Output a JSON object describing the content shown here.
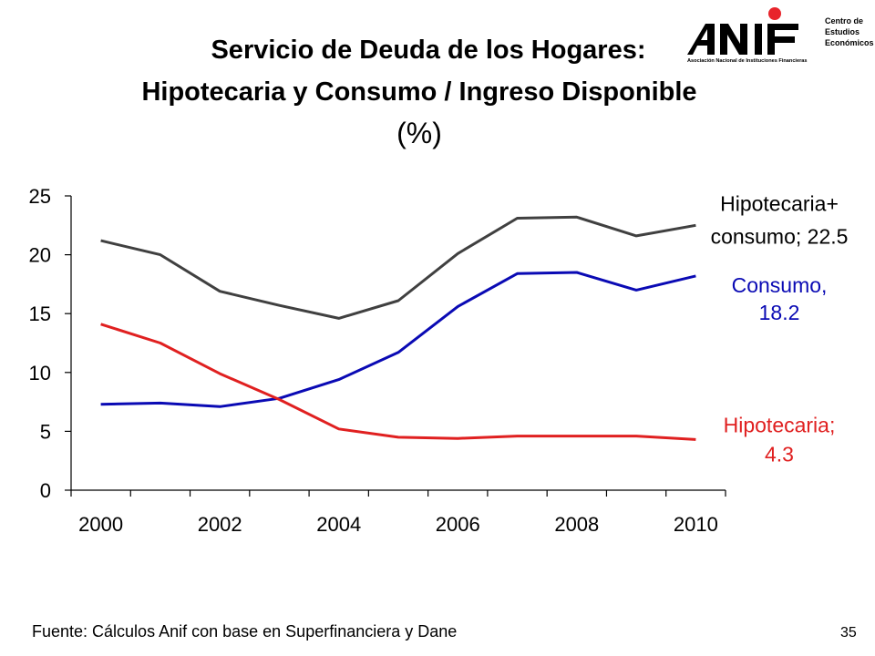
{
  "title": {
    "line1": "Servicio de Deuda de los Hogares:",
    "line2": "Hipotecaria y Consumo / Ingreso Disponible",
    "line3": "(%)"
  },
  "logo": {
    "name": "ANIF",
    "tagline": "Asociación Nacional de Instituciones Financieras",
    "side_text": [
      "Centro de",
      "Estudios",
      "Económicos"
    ],
    "dot_color": "#e8242b"
  },
  "footer": {
    "source": "Fuente: Cálculos Anif con base en Superfinanciera y Dane",
    "page": "35"
  },
  "chart_data": {
    "type": "line",
    "x": [
      2000,
      2001,
      2002,
      2003,
      2004,
      2005,
      2006,
      2007,
      2008,
      2009,
      2010
    ],
    "xticks": [
      "2000",
      "2002",
      "2004",
      "2006",
      "2008",
      "2010"
    ],
    "xlim": [
      2000,
      2011
    ],
    "ylim": [
      0,
      25
    ],
    "yticks": [
      "0",
      "5",
      "10",
      "15",
      "20",
      "25"
    ],
    "grid": false,
    "series": [
      {
        "key": "total",
        "color": "#404040",
        "values": [
          21.2,
          20.0,
          16.9,
          15.7,
          14.6,
          16.1,
          20.1,
          23.1,
          23.2,
          21.6,
          22.5
        ],
        "label_lines": [
          "Hipotecaria+",
          "consumo; 22.5"
        ],
        "label_color": "#000000"
      },
      {
        "key": "consumo",
        "color": "#0a0ab4",
        "values": [
          7.3,
          7.4,
          7.1,
          7.8,
          9.4,
          11.7,
          15.6,
          18.4,
          18.5,
          17.0,
          18.2
        ],
        "label_lines": [
          "Consumo,",
          "18.2"
        ],
        "label_color": "#0a0ab4"
      },
      {
        "key": "hipotecaria",
        "color": "#e02020",
        "values": [
          14.1,
          12.5,
          9.9,
          7.7,
          5.2,
          4.5,
          4.4,
          4.6,
          4.6,
          4.6,
          4.3
        ],
        "label_lines": [
          "Hipotecaria;",
          "4.3"
        ],
        "label_color": "#e02020"
      }
    ]
  }
}
